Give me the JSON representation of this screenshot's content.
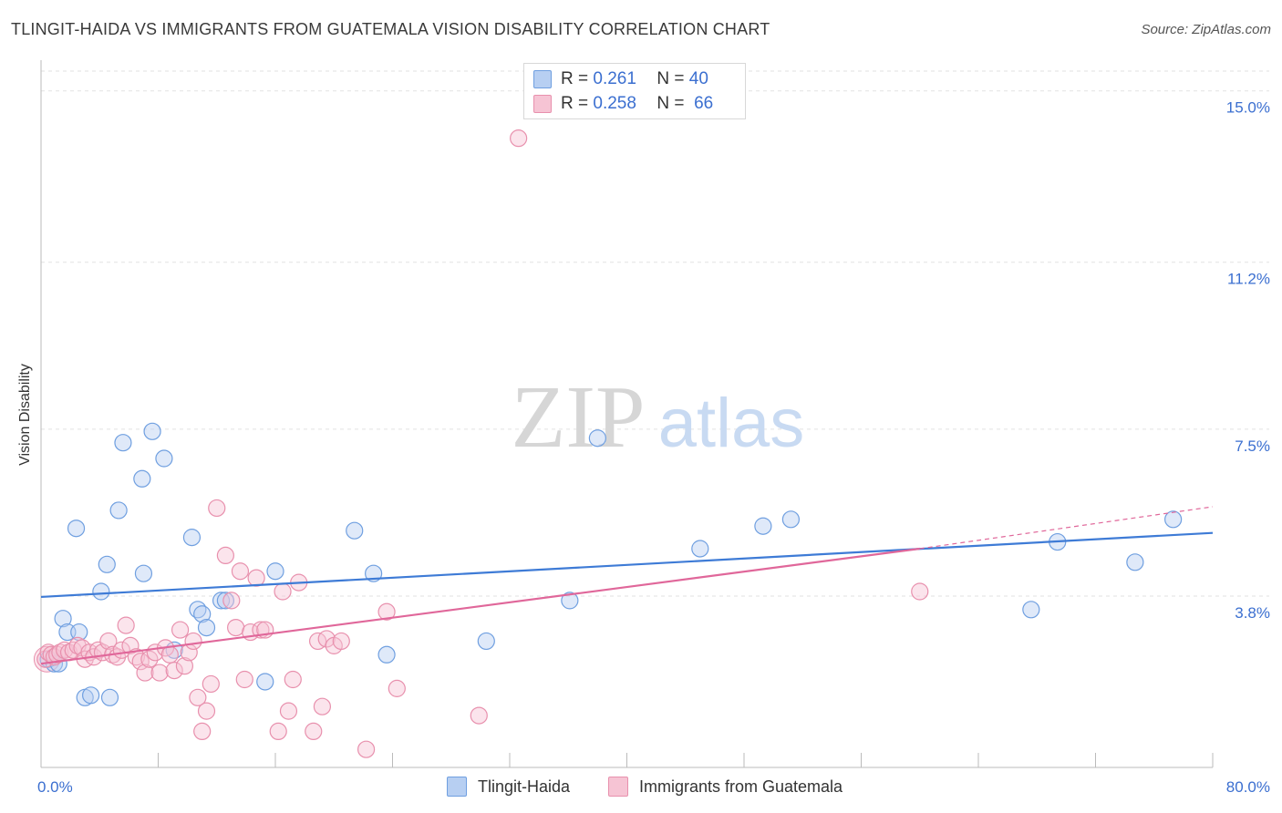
{
  "chart_data": {
    "type": "scatter",
    "title": "TLINGIT-HAIDA VS IMMIGRANTS FROM GUATEMALA VISION DISABILITY CORRELATION CHART",
    "source": "Source: ZipAtlas.com",
    "ylabel": "Vision Disability",
    "xlim": [
      0,
      80
    ],
    "ylim": [
      0,
      15.6
    ],
    "x_tick_labels": [
      "0.0%",
      "80.0%"
    ],
    "y_ticks": [
      {
        "value": 3.8,
        "label": "3.8%"
      },
      {
        "value": 7.5,
        "label": "7.5%"
      },
      {
        "value": 11.2,
        "label": "11.2%"
      },
      {
        "value": 15.0,
        "label": "15.0%"
      }
    ],
    "watermark": {
      "part1": "ZIP",
      "part2": "atlas"
    },
    "legend": {
      "r_label": "R =",
      "n_label": "N =",
      "entries": [
        {
          "r": "0.261",
          "n": "40"
        },
        {
          "r": "0.258",
          "n": "66"
        }
      ]
    },
    "series": [
      {
        "name": "Tlingit-Haida",
        "color": "#6f9fe0",
        "fill": "#b7cff2",
        "line_color": "#3e7bd6",
        "trend": {
          "x0": 0,
          "y0": 3.78,
          "x1": 80,
          "y1": 5.2
        },
        "points": [
          [
            0.5,
            2.4
          ],
          [
            0.9,
            2.3
          ],
          [
            1.2,
            2.3
          ],
          [
            1.5,
            3.3
          ],
          [
            1.8,
            3.0
          ],
          [
            2.4,
            5.3
          ],
          [
            2.6,
            3.0
          ],
          [
            3.0,
            1.55
          ],
          [
            3.4,
            1.6
          ],
          [
            4.1,
            3.9
          ],
          [
            4.5,
            4.5
          ],
          [
            4.7,
            1.55
          ],
          [
            5.3,
            5.7
          ],
          [
            5.6,
            7.2
          ],
          [
            6.9,
            6.4
          ],
          [
            7.0,
            4.3
          ],
          [
            7.6,
            7.45
          ],
          [
            8.4,
            6.85
          ],
          [
            9.1,
            2.6
          ],
          [
            10.3,
            5.1
          ],
          [
            10.7,
            3.5
          ],
          [
            11.0,
            3.4
          ],
          [
            11.3,
            3.1
          ],
          [
            12.3,
            3.7
          ],
          [
            12.6,
            3.7
          ],
          [
            15.3,
            1.9
          ],
          [
            16.0,
            4.35
          ],
          [
            21.4,
            5.25
          ],
          [
            22.7,
            4.3
          ],
          [
            23.6,
            2.5
          ],
          [
            30.4,
            2.8
          ],
          [
            36.1,
            3.7
          ],
          [
            38.0,
            7.3
          ],
          [
            45.0,
            4.85
          ],
          [
            49.3,
            5.35
          ],
          [
            51.2,
            5.5
          ],
          [
            67.6,
            3.5
          ],
          [
            69.4,
            5.0
          ],
          [
            74.7,
            4.55
          ],
          [
            77.3,
            5.5
          ]
        ]
      },
      {
        "name": "Immigrants from Guatemala",
        "color": "#e890ad",
        "fill": "#f6c4d4",
        "line_color": "#e0679a",
        "trend": {
          "x0": 0,
          "y0": 2.3,
          "x1": 60,
          "y1": 4.85
        },
        "trend_ext": {
          "x0": 60,
          "y0": 4.85,
          "x1": 80,
          "y1": 5.78
        },
        "points": [
          [
            0.3,
            2.4
          ],
          [
            0.5,
            2.55
          ],
          [
            0.7,
            2.5
          ],
          [
            0.9,
            2.45
          ],
          [
            1.1,
            2.5
          ],
          [
            1.3,
            2.55
          ],
          [
            1.6,
            2.6
          ],
          [
            1.9,
            2.55
          ],
          [
            2.2,
            2.6
          ],
          [
            2.5,
            2.7
          ],
          [
            2.8,
            2.65
          ],
          [
            3.0,
            2.4
          ],
          [
            3.3,
            2.55
          ],
          [
            3.6,
            2.45
          ],
          [
            3.9,
            2.6
          ],
          [
            4.2,
            2.55
          ],
          [
            4.6,
            2.8
          ],
          [
            4.9,
            2.5
          ],
          [
            5.2,
            2.45
          ],
          [
            5.5,
            2.6
          ],
          [
            5.8,
            3.15
          ],
          [
            6.1,
            2.7
          ],
          [
            6.5,
            2.45
          ],
          [
            6.8,
            2.35
          ],
          [
            7.1,
            2.1
          ],
          [
            7.4,
            2.4
          ],
          [
            7.8,
            2.55
          ],
          [
            8.1,
            2.1
          ],
          [
            8.5,
            2.65
          ],
          [
            8.8,
            2.5
          ],
          [
            9.1,
            2.15
          ],
          [
            9.5,
            3.05
          ],
          [
            9.8,
            2.25
          ],
          [
            10.1,
            2.55
          ],
          [
            10.4,
            2.8
          ],
          [
            10.7,
            1.55
          ],
          [
            11.0,
            0.8
          ],
          [
            11.3,
            1.25
          ],
          [
            11.6,
            1.85
          ],
          [
            12.0,
            5.75
          ],
          [
            12.6,
            4.7
          ],
          [
            13.0,
            3.7
          ],
          [
            13.3,
            3.1
          ],
          [
            13.6,
            4.35
          ],
          [
            13.9,
            1.95
          ],
          [
            14.3,
            3.0
          ],
          [
            14.7,
            4.2
          ],
          [
            15.0,
            3.05
          ],
          [
            15.3,
            3.05
          ],
          [
            16.2,
            0.8
          ],
          [
            16.5,
            3.9
          ],
          [
            16.9,
            1.25
          ],
          [
            17.2,
            1.95
          ],
          [
            17.6,
            4.1
          ],
          [
            18.6,
            0.8
          ],
          [
            18.9,
            2.8
          ],
          [
            19.2,
            1.35
          ],
          [
            19.5,
            2.85
          ],
          [
            20.0,
            2.7
          ],
          [
            20.5,
            2.8
          ],
          [
            22.2,
            0.4
          ],
          [
            23.6,
            3.45
          ],
          [
            24.3,
            1.75
          ],
          [
            29.9,
            1.15
          ],
          [
            32.6,
            13.95
          ],
          [
            60.0,
            3.9
          ]
        ]
      }
    ]
  }
}
